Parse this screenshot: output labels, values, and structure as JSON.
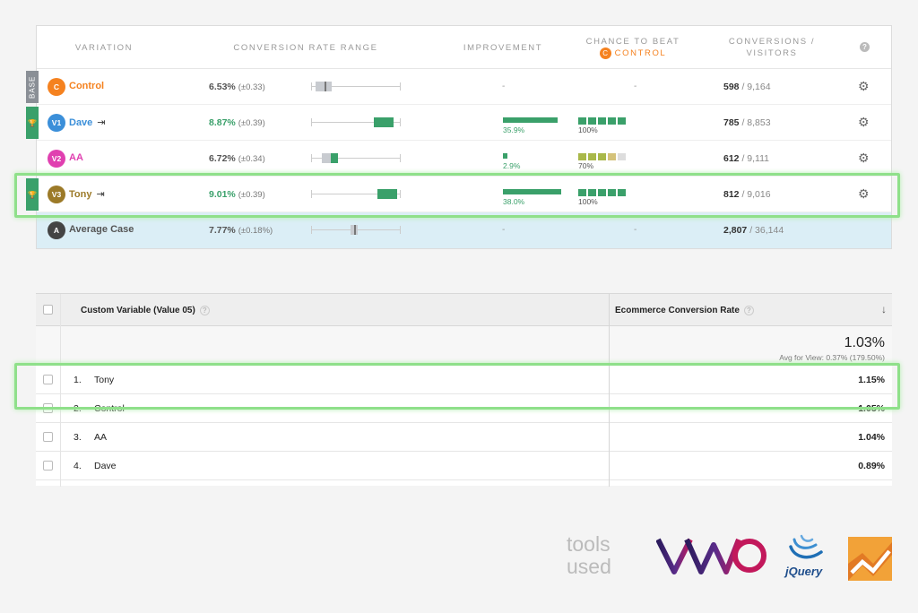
{
  "vwo": {
    "headers": {
      "variation": "VARIATION",
      "range": "CONVERSION RATE RANGE",
      "improvement": "IMPROVEMENT",
      "chance_line1": "CHANCE TO BEAT",
      "chance_badge": "C",
      "chance_line2": "CONTROL",
      "conversions_line1": "CONVERSIONS /",
      "conversions_line2": "VISITORS",
      "help": "?"
    },
    "rows": [
      {
        "tag": "BASE",
        "badge": "C",
        "badge_color": "#f58220",
        "name": "Control",
        "name_color": "#f58220",
        "rate": "6.53%",
        "pm": "(±0.33)",
        "improvement": "-",
        "chance": "-",
        "conversions": "598",
        "visitors": "/ 9,164"
      },
      {
        "tag": "trophy",
        "badge": "V1",
        "badge_color": "#3b8fd9",
        "name": "Dave",
        "name_color": "#3b8fd9",
        "rate": "8.87%",
        "pm": "(±0.39)",
        "improvement": "35.9%",
        "improvement_level": 0.9,
        "chance": "100%",
        "chance_squares": 5,
        "conversions": "785",
        "visitors": "/ 8,853"
      },
      {
        "tag": "",
        "badge": "V2",
        "badge_color": "#e040b0",
        "name": "AA",
        "name_color": "#e040b0",
        "rate": "6.72%",
        "pm": "(±0.34)",
        "improvement": "2.9%",
        "improvement_level": 0.07,
        "chance": "70%",
        "chance_squares": 3.5,
        "conversions": "612",
        "visitors": "/ 9,111"
      },
      {
        "tag": "trophy",
        "badge": "V3",
        "badge_color": "#9c7a28",
        "name": "Tony",
        "name_color": "#9c7a28",
        "rate": "9.01%",
        "pm": "(±0.39)",
        "improvement": "38.0%",
        "improvement_level": 0.95,
        "chance": "100%",
        "chance_squares": 5,
        "conversions": "812",
        "visitors": "/ 9,016"
      },
      {
        "tag": "",
        "badge": "A",
        "badge_color": "#444444",
        "name": "Average Case",
        "name_color": "#555555",
        "rate": "7.77%",
        "pm": "(±0.18%)",
        "improvement": "-",
        "chance": "-",
        "conversions": "2,807",
        "visitors": "/ 36,144"
      }
    ]
  },
  "ga": {
    "col1": "Custom Variable (Value 05)",
    "col2": "Ecommerce Conversion Rate",
    "qmark": "?",
    "total": "1.03%",
    "avg": "Avg for View: 0.37% (179.50%)",
    "rows": [
      {
        "num": "1.",
        "name": "Tony",
        "value": "1.15%"
      },
      {
        "num": "2.",
        "name": "Control",
        "value": "1.05%"
      },
      {
        "num": "3.",
        "name": "AA",
        "value": "1.04%"
      },
      {
        "num": "4.",
        "name": "Dave",
        "value": "0.89%"
      }
    ]
  },
  "footer": {
    "tools_line1": "tools",
    "tools_line2": "used",
    "logo_vwo": "VWO",
    "logo_jquery": "jQuery",
    "logo_ga": "google-analytics-icon"
  },
  "colors": {
    "win_green": "#3aa06a",
    "control_orange": "#f58220",
    "highlight": "#8fe08a",
    "avg_row_bg": "#dbeef6"
  }
}
